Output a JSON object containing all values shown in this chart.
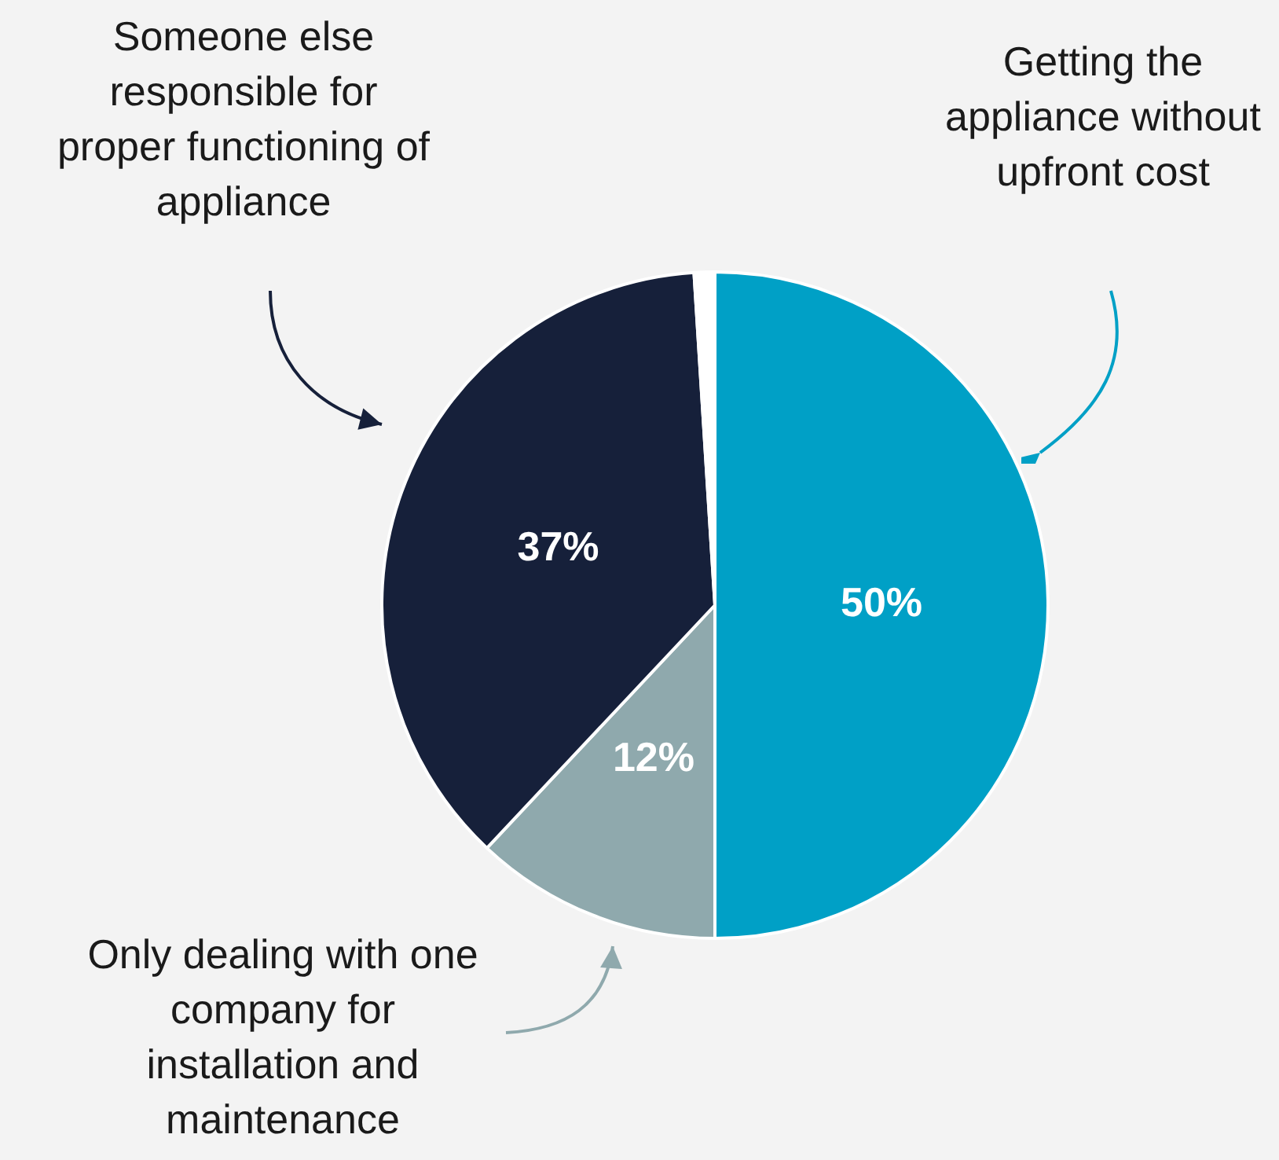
{
  "chart_data": {
    "type": "pie",
    "categories": [
      "Getting the appliance without upfront cost",
      "Only dealing with one company for installation and maintenance",
      "Someone else responsible for proper functioning of appliance",
      null
    ],
    "values": [
      50,
      12,
      37,
      1
    ],
    "colors": [
      "#00a0c6",
      "#8fa9ad",
      "#16203a",
      "#ffffff"
    ],
    "value_labels": [
      "50%",
      "12%",
      "37%",
      null
    ],
    "legend": false
  }
}
